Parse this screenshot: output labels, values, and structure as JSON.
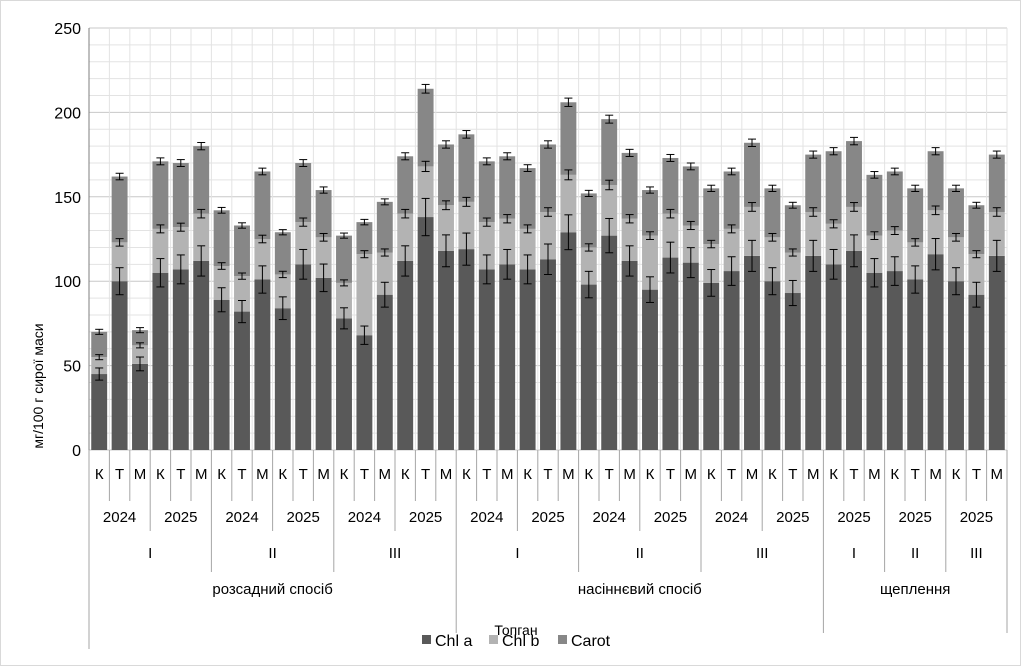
{
  "chart_data": {
    "type": "bar",
    "stacked": true,
    "error_bars": true,
    "ylabel": "мг/100 г сирої маси",
    "xlabel": "Топган",
    "ylim": [
      0,
      250
    ],
    "yticks": [
      0,
      50,
      100,
      150,
      200,
      250
    ],
    "grid": true,
    "legend_position": "bottom",
    "categories": [
      "К",
      "Т",
      "М",
      "К",
      "Т",
      "М",
      "К",
      "Т",
      "М",
      "К",
      "Т",
      "М",
      "К",
      "Т",
      "М",
      "К",
      "Т",
      "М",
      "К",
      "Т",
      "М",
      "К",
      "Т",
      "М",
      "К",
      "Т",
      "М",
      "К",
      "Т",
      "М",
      "К",
      "Т",
      "М",
      "К",
      "Т",
      "М",
      "К",
      "Т",
      "М",
      "К",
      "Т",
      "М",
      "К",
      "Т",
      "М"
    ],
    "year_groups": [
      {
        "label": "2024",
        "span": 3
      },
      {
        "label": "2025",
        "span": 3
      },
      {
        "label": "2024",
        "span": 3
      },
      {
        "label": "2025",
        "span": 3
      },
      {
        "label": "2024",
        "span": 3
      },
      {
        "label": "2025",
        "span": 3
      },
      {
        "label": "2024",
        "span": 3
      },
      {
        "label": "2025",
        "span": 3
      },
      {
        "label": "2024",
        "span": 3
      },
      {
        "label": "2025",
        "span": 3
      },
      {
        "label": "2024",
        "span": 3
      },
      {
        "label": "2025",
        "span": 3
      },
      {
        "label": "2025",
        "span": 3
      },
      {
        "label": "2025",
        "span": 3
      },
      {
        "label": "2025",
        "span": 3
      }
    ],
    "roman_groups": [
      {
        "label": "I",
        "span": 6
      },
      {
        "label": "II",
        "span": 6
      },
      {
        "label": "III",
        "span": 6
      },
      {
        "label": "I",
        "span": 6
      },
      {
        "label": "II",
        "span": 6
      },
      {
        "label": "III",
        "span": 6
      },
      {
        "label": "I",
        "span": 3
      },
      {
        "label": "II",
        "span": 3
      },
      {
        "label": "III",
        "span": 3
      }
    ],
    "method_groups": [
      {
        "label": "розсадний спосіб",
        "span": 18
      },
      {
        "label": "насіннєвий спосіб",
        "span": 18
      },
      {
        "label": "щеплення",
        "span": 9
      }
    ],
    "series": [
      {
        "name": "Chl a",
        "color": "#595959",
        "values": [
          45,
          100,
          51,
          105,
          107,
          112,
          89,
          82,
          101,
          84,
          110,
          102,
          78,
          68,
          92,
          112,
          138,
          118,
          119,
          107,
          110,
          107,
          113,
          129,
          98,
          127,
          112,
          95,
          114,
          111,
          99,
          106,
          115,
          100,
          93,
          115,
          110,
          118,
          105,
          106,
          101,
          116,
          100,
          92,
          115
        ]
      },
      {
        "name": "Chl b",
        "color": "#b3b3b3",
        "values": [
          10,
          23,
          11,
          26,
          25,
          28,
          20,
          21,
          24,
          20,
          25,
          24,
          21,
          48,
          25,
          28,
          30,
          27,
          28,
          28,
          27,
          24,
          28,
          34,
          22,
          30,
          25,
          32,
          26,
          22,
          23,
          25,
          29,
          26,
          24,
          26,
          24,
          26,
          22,
          24,
          22,
          26,
          26,
          24,
          26
        ]
      },
      {
        "name": "Carot",
        "color": "#878787",
        "values": [
          15,
          39,
          9,
          40,
          38,
          40,
          33,
          30,
          40,
          25,
          35,
          28,
          28,
          19,
          30,
          34,
          46,
          36,
          40,
          36,
          37,
          36,
          40,
          43,
          32,
          39,
          39,
          27,
          33,
          35,
          33,
          34,
          38,
          29,
          28,
          34,
          43,
          39,
          36,
          35,
          32,
          35,
          29,
          29,
          34
        ]
      }
    ]
  }
}
